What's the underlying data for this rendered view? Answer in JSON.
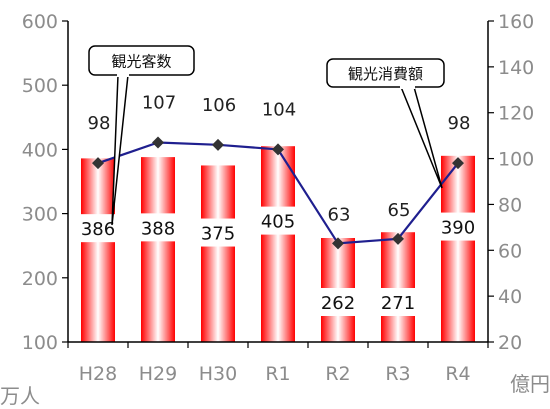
{
  "chart_data": {
    "type": "bar",
    "categories": [
      "H28",
      "H29",
      "H30",
      "R1",
      "R2",
      "R3",
      "R4"
    ],
    "series": [
      {
        "name": "観光客数",
        "type": "bar",
        "axis": "left",
        "values": [
          386,
          388,
          375,
          405,
          262,
          271,
          390
        ]
      },
      {
        "name": "観光消費額",
        "type": "line",
        "axis": "right",
        "values": [
          98,
          107,
          106,
          104,
          63,
          65,
          98
        ]
      }
    ],
    "left_axis": {
      "unit": "万人",
      "ylim": [
        100,
        600
      ],
      "ticks": [
        100,
        200,
        300,
        400,
        500,
        600
      ]
    },
    "right_axis": {
      "unit": "億円",
      "ylim": [
        20,
        160
      ],
      "ticks": [
        20,
        40,
        60,
        80,
        100,
        120,
        140,
        160
      ]
    },
    "callouts": [
      {
        "text": "観光客数",
        "points_to": "bar"
      },
      {
        "text": "観光消費額",
        "points_to": "line"
      }
    ],
    "colors": {
      "bar_edge": "#ff0000",
      "bar_center": "#ffffff",
      "line": "#1f1f8f",
      "marker": "#333333",
      "tick_text": "#8c8c8c"
    },
    "grid": false
  }
}
